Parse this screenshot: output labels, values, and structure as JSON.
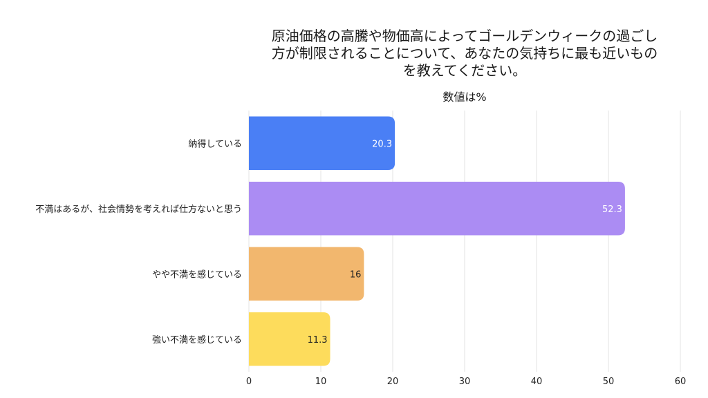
{
  "chart_data": {
    "type": "bar",
    "orientation": "horizontal",
    "title": "原油価格の高騰や物価高によってゴールデンウィークの過ごし方が制限されることについて、あなたの気持ちに最も近いものを教えてください。",
    "title_lines": [
      "原油価格の高騰や物価高によってゴールデンウィークの過ごし",
      "方が制限されることについて、あなたの気持ちに最も近いもの",
      "を教えてください。"
    ],
    "subtitle": "数値は%",
    "categories": [
      "納得している",
      "不満はあるが、社会情勢を考えれば仕方ないと思う",
      "やや不満を感じている",
      "強い不満を感じている"
    ],
    "values": [
      20.3,
      52.3,
      16,
      11.3
    ],
    "value_labels": [
      "20.3",
      "52.3",
      "16",
      "11.3"
    ],
    "colors": [
      "#4a7ff5",
      "#ab8cf3",
      "#f2b76e",
      "#fddc5c"
    ],
    "label_colors": [
      "#ffffff",
      "#ffffff",
      "#222222",
      "#222222"
    ],
    "xlim": [
      0,
      60
    ],
    "xticks": [
      0,
      10,
      20,
      30,
      40,
      50,
      60
    ],
    "xlabel": "",
    "ylabel": "",
    "grid": true,
    "legend": "none"
  }
}
